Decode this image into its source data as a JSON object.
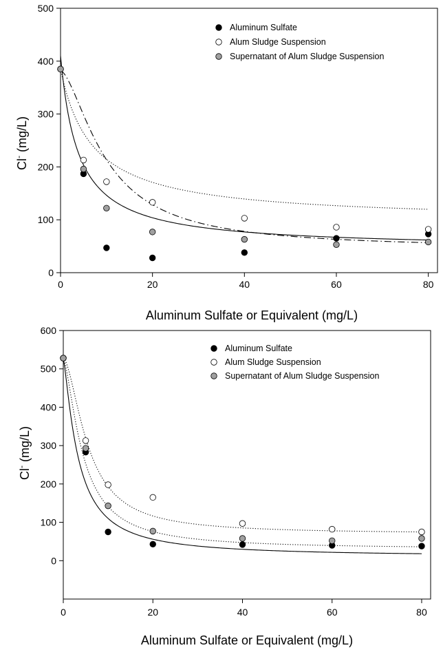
{
  "chart_data": [
    {
      "type": "scatter",
      "xlabel": "Aluminum Sulfate or Equivalent (mg/L)",
      "ylabel_main": "Cl",
      "ylabel_sup": "-",
      "ylabel_unit": " (mg/L)",
      "xlim": [
        0,
        82
      ],
      "ylim": [
        0,
        500
      ],
      "xticks": [
        0,
        20,
        40,
        60,
        80
      ],
      "yticks": [
        0,
        100,
        200,
        300,
        400,
        500
      ],
      "legend_position": "top-right",
      "series": [
        {
          "name": "Aluminum Sulfate",
          "marker_fill": "#000000",
          "x": [
            0,
            5,
            10,
            20,
            40,
            60,
            80
          ],
          "y": [
            385,
            187,
            47,
            28,
            38,
            65,
            73
          ],
          "fit": {
            "style": "solid",
            "a": 45,
            "b": 365,
            "k": 0.26
          }
        },
        {
          "name": "Alum Sludge Suspension",
          "marker_fill": "#ffffff",
          "x": [
            0,
            5,
            10,
            20,
            40,
            60,
            80
          ],
          "y": [
            385,
            213,
            172,
            133,
            103,
            86,
            82
          ],
          "fit": {
            "style": "dotted",
            "a": 97,
            "b": 288,
            "k": 0.145
          }
        },
        {
          "name": "Supernatant of Alum Sludge Suspension",
          "marker_fill": "#a0a0a0",
          "x": [
            0,
            5,
            10,
            20,
            40,
            60,
            80
          ],
          "y": [
            385,
            196,
            122,
            77,
            63,
            53,
            58
          ],
          "fit": {
            "style": "dashdot",
            "a": 45,
            "b": 337,
            "k": 0.1,
            "p": 1.6
          }
        }
      ]
    },
    {
      "type": "scatter",
      "xlabel": "Aluminum Sulfate or Equivalent (mg/L)",
      "ylabel_main": "Cl",
      "ylabel_sup": "-",
      "ylabel_unit": " (mg/L)",
      "xlim": [
        0,
        82
      ],
      "ylim": [
        -100,
        600
      ],
      "xticks": [
        0,
        20,
        40,
        60,
        80
      ],
      "yticks": [
        0,
        100,
        200,
        300,
        400,
        500,
        600
      ],
      "legend_position": "top-right",
      "series": [
        {
          "name": "Aluminum Sulfate",
          "marker_fill": "#000000",
          "x": [
            0,
            5,
            10,
            20,
            40,
            60,
            80
          ],
          "y": [
            528,
            283,
            75,
            43,
            42,
            40,
            38
          ],
          "fit": {
            "style": "solid",
            "a": 10,
            "b": 518,
            "k": 0.3,
            "p": 1.3
          }
        },
        {
          "name": "Alum Sludge Suspension",
          "marker_fill": "#ffffff",
          "x": [
            0,
            5,
            10,
            20,
            40,
            60,
            80
          ],
          "y": [
            528,
            313,
            198,
            165,
            97,
            82,
            75
          ],
          "fit": {
            "style": "dotted",
            "a": 70,
            "b": 458,
            "k": 0.18,
            "p": 1.7
          }
        },
        {
          "name": "Supernatant of Alum Sludge Suspension",
          "marker_fill": "#a0a0a0",
          "x": [
            0,
            5,
            10,
            20,
            40,
            60,
            80
          ],
          "y": [
            528,
            293,
            143,
            77,
            58,
            52,
            58
          ],
          "fit": {
            "style": "dotted",
            "a": 30,
            "b": 498,
            "k": 0.23,
            "p": 1.5
          }
        }
      ]
    }
  ]
}
